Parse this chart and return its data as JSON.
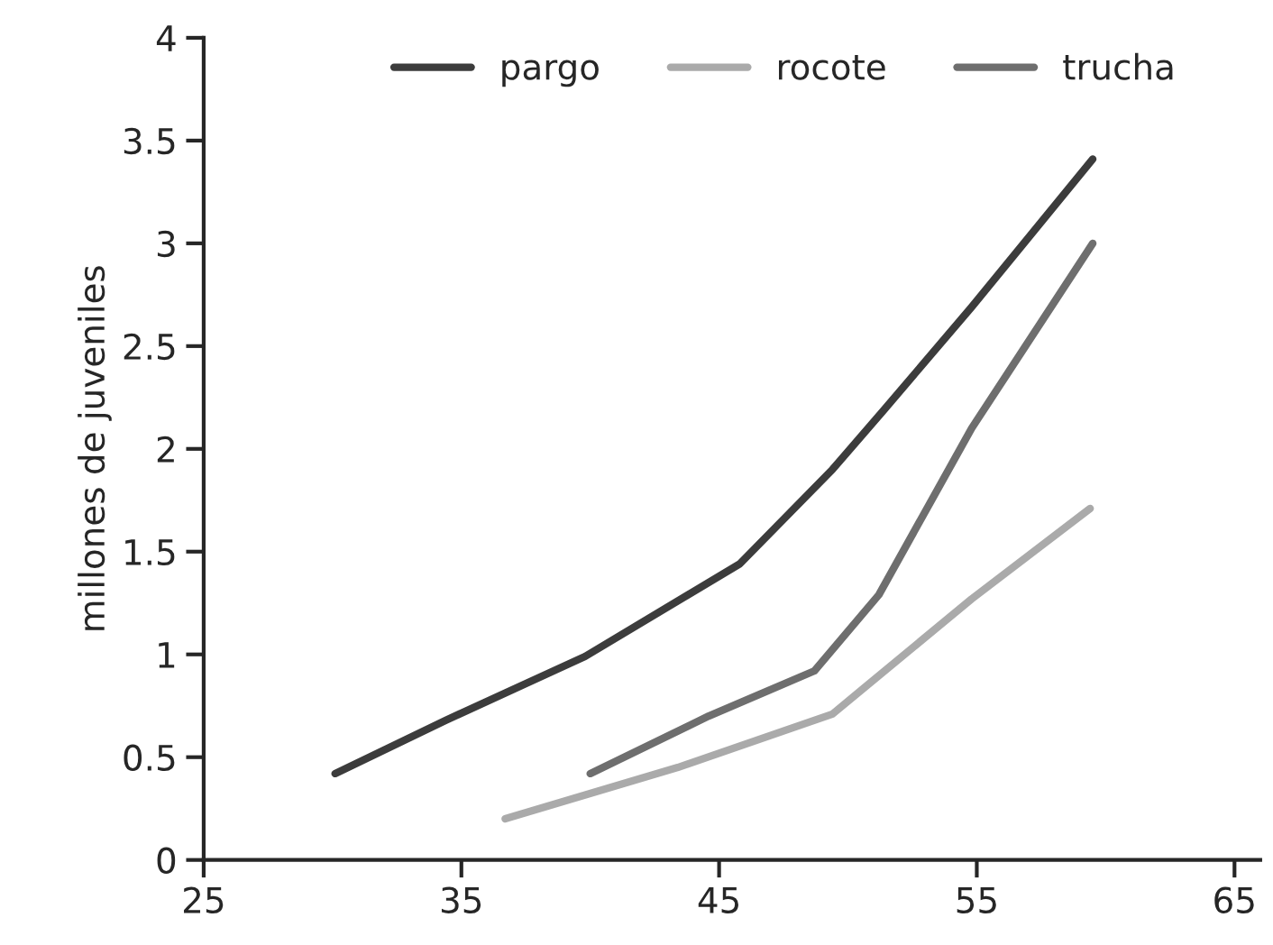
{
  "chart_data": {
    "type": "line",
    "ylabel": "millones de juveniles",
    "xlim": [
      25,
      66
    ],
    "xticks": [
      25,
      35,
      45,
      55,
      65
    ],
    "ylim": [
      0,
      4
    ],
    "yticks": [
      0,
      0.5,
      1,
      1.5,
      2,
      2.5,
      3,
      3.5,
      4
    ],
    "grid": false,
    "legend": "top",
    "marker": "none",
    "line_style": "solid",
    "series": [
      {
        "name": "pargo",
        "color": "#3c3c3c",
        "x": [
          30.1,
          34.4,
          39.8,
          45.8,
          49.4,
          51.4,
          54.8,
          59.5
        ],
        "values": [
          0.42,
          0.68,
          0.99,
          1.44,
          1.9,
          2.19,
          2.69,
          3.41
        ]
      },
      {
        "name": "rocote",
        "color": "#aaaaaa",
        "x": [
          36.7,
          43.4,
          49.4,
          54.8,
          59.4
        ],
        "values": [
          0.2,
          0.45,
          0.71,
          1.27,
          1.71
        ]
      },
      {
        "name": "trucha",
        "color": "#6e6e6e",
        "x": [
          40.0,
          44.6,
          48.7,
          51.2,
          54.8,
          59.5
        ],
        "values": [
          0.42,
          0.7,
          0.92,
          1.29,
          2.1,
          3.0
        ]
      }
    ]
  }
}
